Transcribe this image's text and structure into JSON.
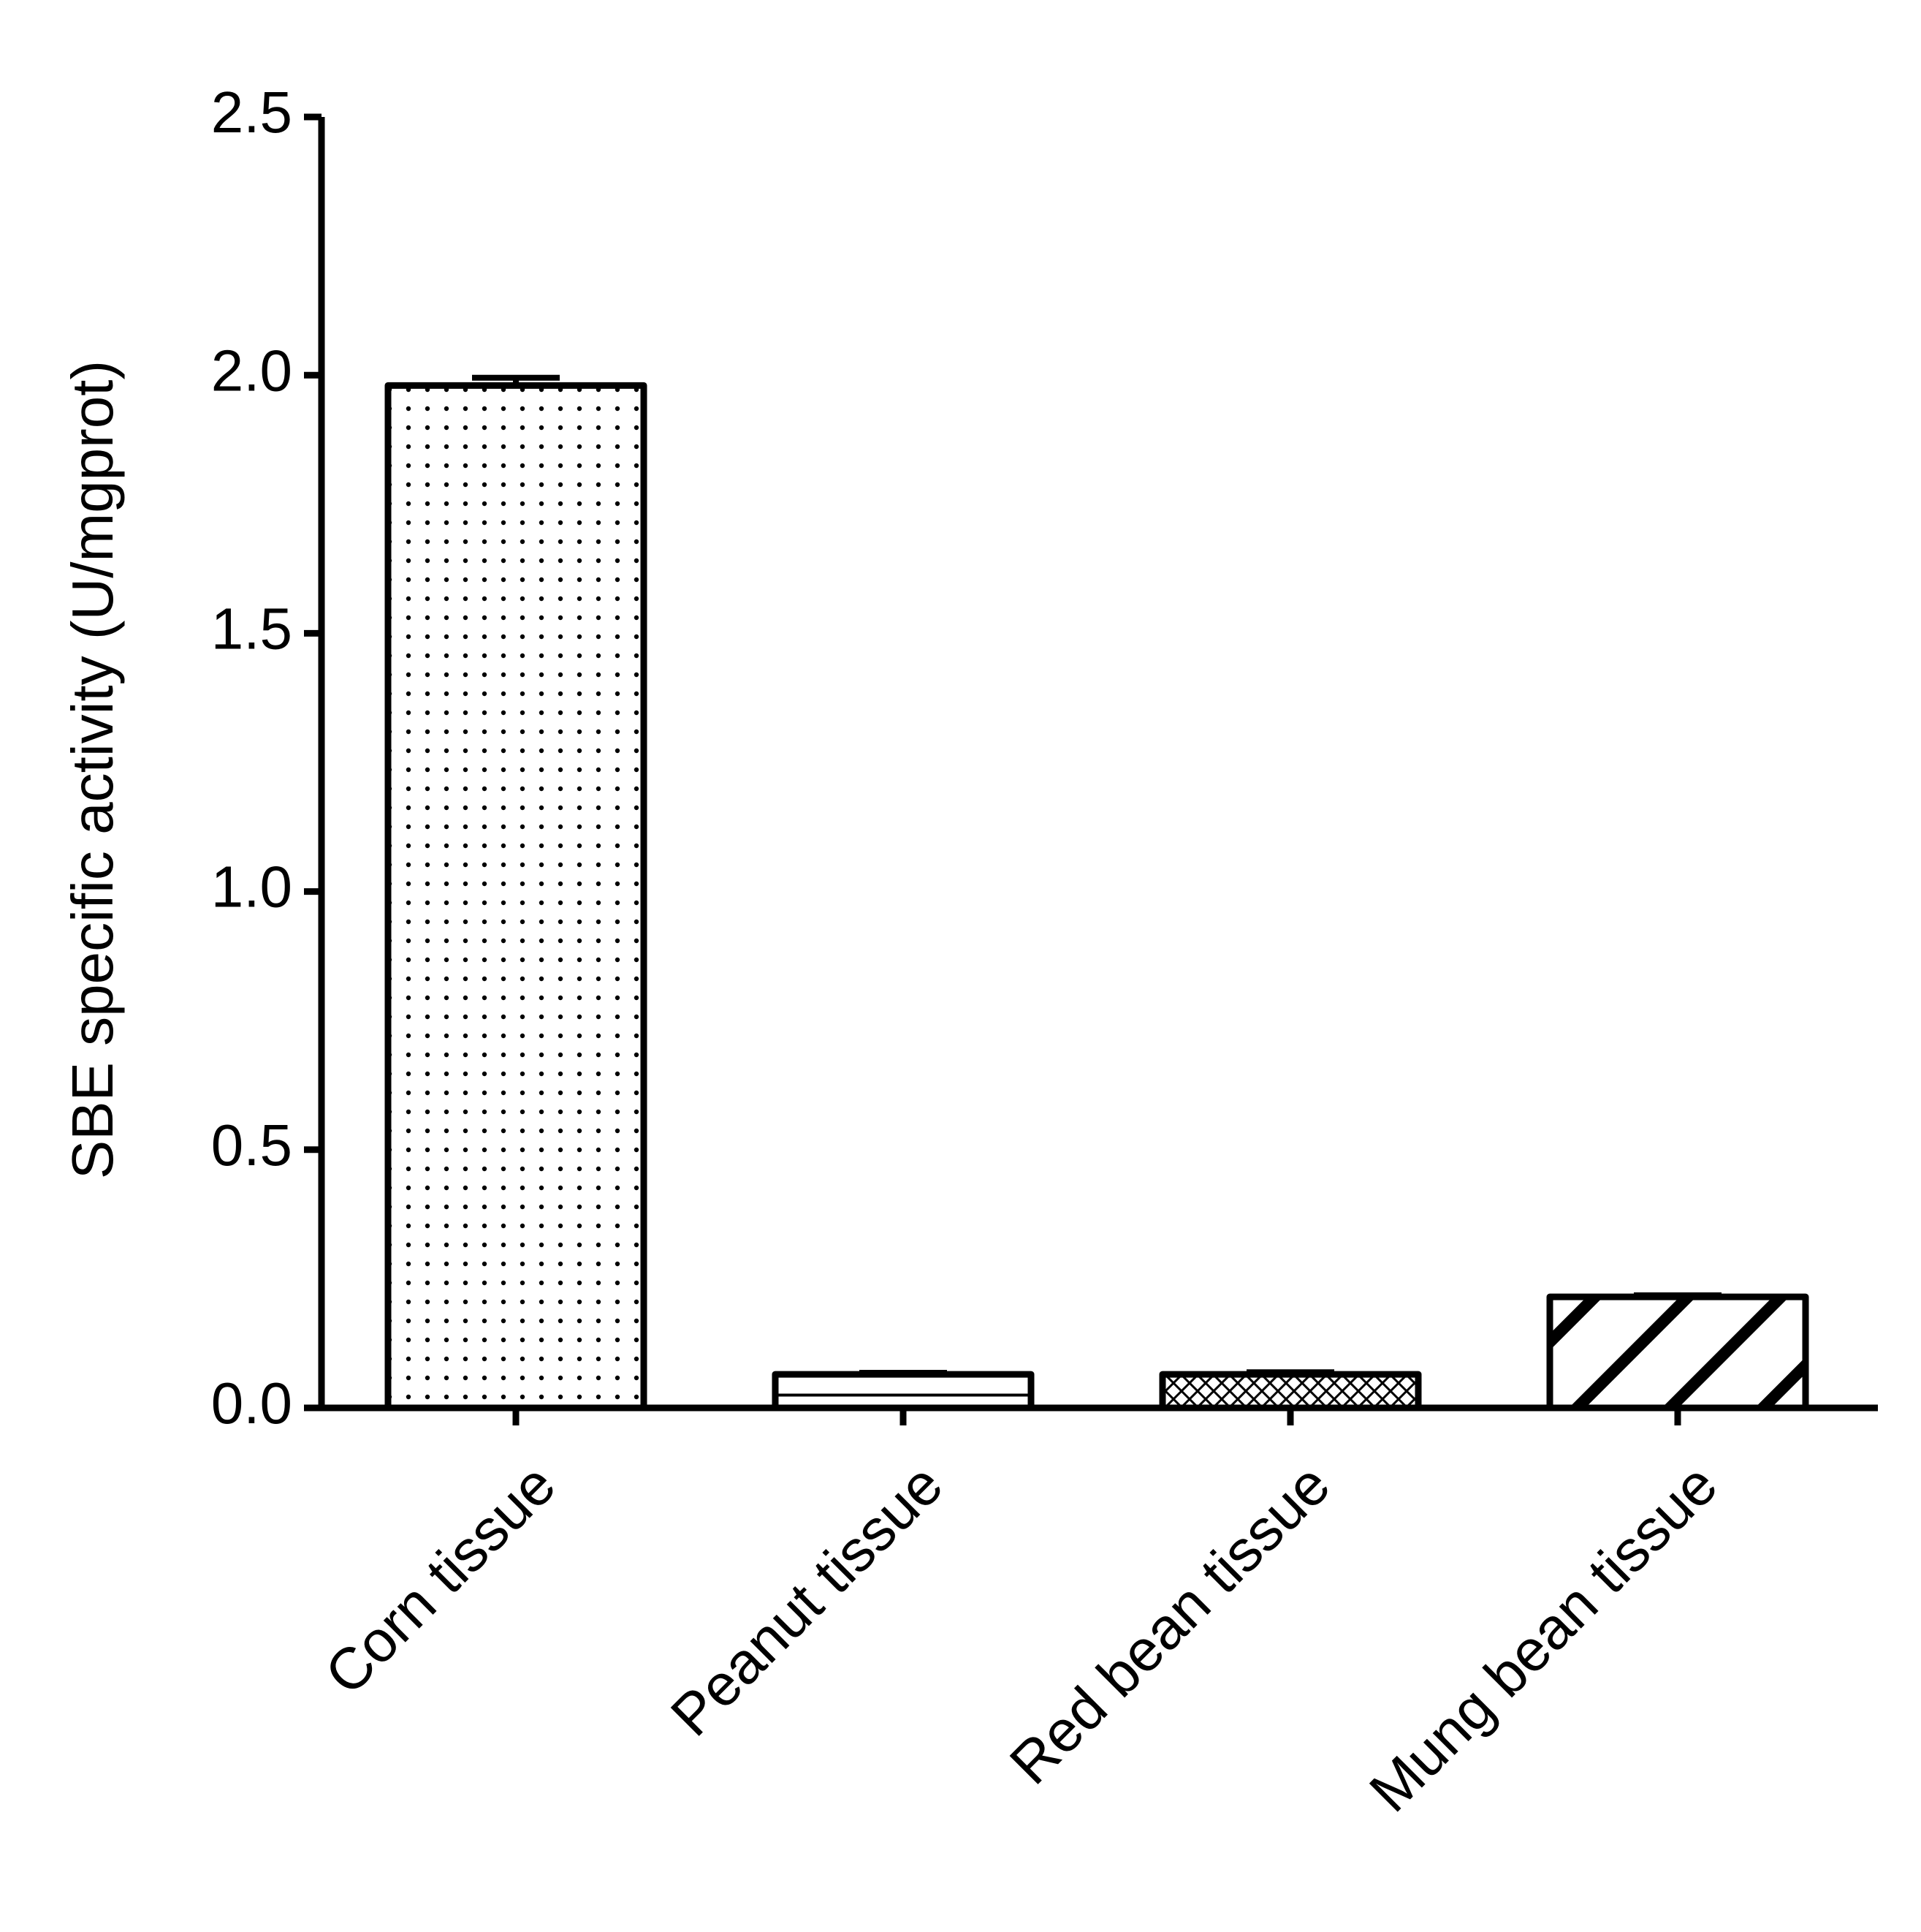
{
  "chart_data": {
    "type": "bar",
    "title": "",
    "xlabel": "",
    "ylabel": "SBE specific activity (U/mgprot)",
    "ylim": [
      0,
      2.5
    ],
    "yticks": [
      0.0,
      0.5,
      1.0,
      1.5,
      2.0,
      2.5
    ],
    "ytick_labels": [
      "0.0",
      "0.5",
      "1.0",
      "1.5",
      "2.0",
      "2.5"
    ],
    "categories": [
      "Corn tissue",
      "Peanut tissue",
      "Red bean tissue",
      "Mung bean tissue"
    ],
    "values": [
      1.98,
      0.065,
      0.065,
      0.215
    ],
    "errors": [
      0.015,
      0.003,
      0.004,
      0.003
    ],
    "patterns": [
      "dots",
      "horizontal-line",
      "crosshatch",
      "diagonal-stripes"
    ],
    "grid": false,
    "legend": "none",
    "colors": {
      "bar_stroke": "#000000",
      "bar_fill": "#ffffff",
      "pattern": "#000000",
      "axis": "#000000"
    }
  }
}
